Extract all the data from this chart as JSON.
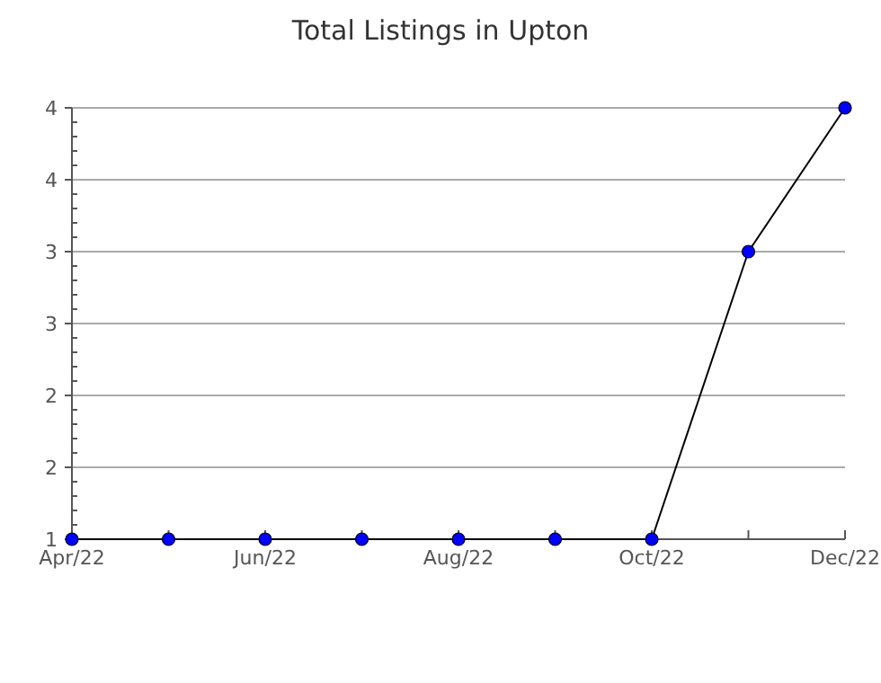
{
  "chart_data": {
    "type": "line",
    "title": "Total Listings in Upton",
    "categories": [
      "Apr/22",
      null,
      "Jun/22",
      null,
      "Aug/22",
      null,
      "Oct/22",
      null,
      "Dec/22"
    ],
    "series": [
      {
        "color": "#0000ff",
        "values": [
          1,
          1,
          1,
          1,
          1,
          1,
          1,
          3,
          4
        ]
      }
    ],
    "ylim": [
      1,
      4
    ],
    "yticks": [
      1,
      {
        "value": 1.5,
        "label": "2"
      },
      2,
      {
        "value": 2.5,
        "label": "3"
      },
      3,
      {
        "value": 3.5,
        "label": "4"
      },
      4
    ],
    "grid": "y",
    "marker": "circle",
    "line_style": "solid"
  }
}
